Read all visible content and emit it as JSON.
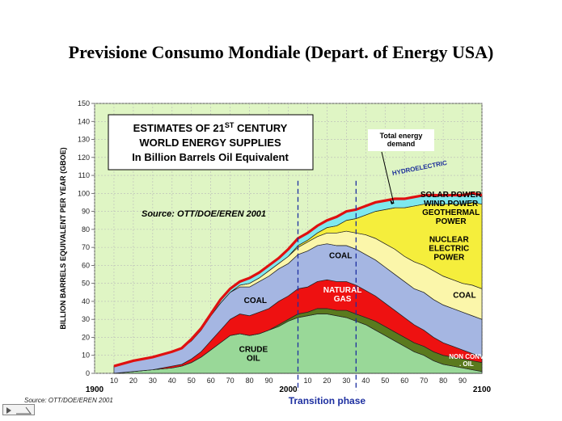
{
  "slide": {
    "title": "Previsione Consumo Mondiale (Depart. of Energy USA)",
    "footer_source": "Source: OTT/DOE/EREN 2001"
  },
  "chart_data": {
    "type": "area",
    "stacked": true,
    "title_lines": [
      "ESTIMATES OF 21",
      "WORLD ENERGY SUPPLIES",
      "In Billion Barrels Oil Equivalent"
    ],
    "title_superscript": "ST",
    "title_line1_suffix": " CENTURY",
    "source_note": "Source: OTT/DOE/EREN 2001",
    "ylabel": "BILLION BARRELS EQUIVALENT PER YEAR (GBOE)",
    "xlabel": "Transition phase",
    "ylim": [
      0,
      150
    ],
    "xlim": [
      1900,
      2100
    ],
    "y_ticks": [
      0,
      10,
      20,
      30,
      40,
      50,
      60,
      70,
      80,
      90,
      100,
      110,
      120,
      130,
      140,
      150
    ],
    "x_ticks": [
      1910,
      1920,
      1930,
      1940,
      1950,
      1960,
      1970,
      1980,
      1990,
      2010,
      2020,
      2030,
      2040,
      2050,
      2060,
      2070,
      2080,
      2090
    ],
    "x_tick_labels": [
      "10",
      "20",
      "30",
      "40",
      "50",
      "60",
      "70",
      "80",
      "90",
      "10",
      "20",
      "30",
      "40",
      "50",
      "60",
      "70",
      "80",
      "90"
    ],
    "x_major_ticks": [
      1900,
      2000,
      2100
    ],
    "x_major_labels": [
      "1900",
      "2000",
      "2100"
    ],
    "transition_lines": [
      2005,
      2035
    ],
    "x": [
      1910,
      1920,
      1930,
      1940,
      1945,
      1950,
      1955,
      1960,
      1965,
      1970,
      1975,
      1980,
      1985,
      1990,
      1995,
      2000,
      2005,
      2010,
      2015,
      2020,
      2025,
      2030,
      2035,
      2040,
      2045,
      2050,
      2055,
      2060,
      2065,
      2070,
      2075,
      2080,
      2085,
      2090,
      2095,
      2100
    ],
    "series": [
      {
        "name": "CRUDE OIL",
        "color": "#99d898",
        "values": [
          0,
          1,
          2,
          3,
          4,
          6,
          9,
          13,
          17,
          21,
          22,
          21,
          22,
          24,
          26,
          29,
          31,
          32,
          33,
          33,
          32,
          31,
          29,
          27,
          24,
          21,
          18,
          15,
          12,
          10,
          7,
          5,
          4,
          3,
          2,
          1
        ]
      },
      {
        "name": "NON CONV. OIL",
        "color": "#5a7a1e",
        "values": [
          0,
          0,
          0,
          0,
          0,
          0,
          0,
          0,
          0,
          0,
          0,
          0,
          0,
          0,
          1,
          1,
          2,
          2,
          3,
          3,
          3,
          4,
          4,
          4,
          5,
          5,
          5,
          5,
          5,
          5,
          5,
          5,
          5,
          5,
          5,
          5
        ]
      },
      {
        "name": "NATURAL GAS",
        "color": "#ee1111",
        "values": [
          0,
          0,
          0,
          1,
          1,
          2,
          3,
          5,
          7,
          9,
          11,
          11,
          12,
          12,
          13,
          13,
          14,
          14,
          15,
          16,
          16,
          16,
          16,
          15,
          14,
          13,
          12,
          11,
          10,
          9,
          8,
          7,
          6,
          5,
          4,
          3
        ]
      },
      {
        "name": "COAL",
        "color": "#a5b6e2",
        "values": [
          4,
          6,
          7,
          8,
          9,
          10,
          12,
          14,
          15,
          15,
          15,
          16,
          17,
          18,
          18,
          18,
          19,
          20,
          20,
          20,
          20,
          20,
          20,
          20,
          20,
          20,
          20,
          20,
          20,
          21,
          21,
          21,
          21,
          21,
          21,
          21
        ]
      },
      {
        "name": "NUCLEAR ELECTRIC POWER",
        "color": "#fbf6aa",
        "values": [
          0,
          0,
          0,
          0,
          0,
          0,
          0,
          0,
          0,
          0,
          1,
          2,
          2,
          3,
          3,
          4,
          4,
          5,
          5,
          6,
          7,
          8,
          9,
          11,
          12,
          13,
          14,
          14,
          15,
          15,
          16,
          16,
          16,
          16,
          17,
          17
        ]
      },
      {
        "name": "SOLAR POWER WIND POWER GEOTHERMAL POWER",
        "color": "#f5ee3c",
        "values": [
          0,
          0,
          0,
          0,
          0,
          0,
          0,
          0,
          0,
          0,
          0,
          0,
          0,
          0,
          0,
          0,
          1,
          1,
          2,
          3,
          4,
          6,
          8,
          11,
          15,
          19,
          23,
          27,
          31,
          34,
          37,
          40,
          42,
          44,
          46,
          47
        ]
      },
      {
        "name": "HYDROELECTRIC",
        "color": "#7ee8ee",
        "values": [
          0,
          0,
          0,
          0,
          0,
          1,
          1,
          1,
          2,
          2,
          2,
          3,
          3,
          3,
          3,
          4,
          4,
          4,
          4,
          4,
          5,
          5,
          5,
          5,
          5,
          5,
          5,
          5,
          5,
          5,
          5,
          5,
          5,
          5,
          5,
          5
        ]
      }
    ],
    "total_label": "Total energy demand",
    "total_label_lines": [
      "Total energy",
      "demand"
    ],
    "area_labels": [
      {
        "text": "CRUDE OIL",
        "lines": [
          "CRUDE",
          "OIL"
        ],
        "x": 1982,
        "y": 12,
        "color": "#000000"
      },
      {
        "text": "NON CONV. OIL",
        "lines": [
          "NON CONV",
          ". OIL"
        ],
        "x": 2092,
        "y": 8,
        "color": "#ffffff"
      },
      {
        "text": "NATURAL GAS",
        "lines": [
          "NATURAL",
          "GAS"
        ],
        "x": 2028,
        "y": 45,
        "color": "#ffffff"
      },
      {
        "text": "COAL",
        "lines": [
          "COAL"
        ],
        "x": 1983,
        "y": 39,
        "color": "#000000"
      },
      {
        "text": "COAL",
        "lines": [
          "COAL"
        ],
        "x": 2027,
        "y": 64,
        "color": "#000000"
      },
      {
        "text": "COAL",
        "lines": [
          "COAL"
        ],
        "x": 2091,
        "y": 42,
        "color": "#000000"
      },
      {
        "text": "NUCLEAR ELECTRIC POWER",
        "lines": [
          "NUCLEAR",
          "ELECTRIC",
          "POWER"
        ],
        "x": 2083,
        "y": 73,
        "color": "#000000"
      },
      {
        "text": "SOLAR POWER WIND POWER GEOTHERMAL POWER",
        "lines": [
          "SOLAR POWER",
          "WIND POWER",
          "GEOTHERMAL",
          "POWER"
        ],
        "x": 2084,
        "y": 98,
        "color": "#000000"
      },
      {
        "text": "HYDROELECTRIC",
        "lines": [
          "HYDROELECTRIC"
        ],
        "x": 2068,
        "y": 113,
        "color": "#1d2f9a"
      }
    ]
  }
}
